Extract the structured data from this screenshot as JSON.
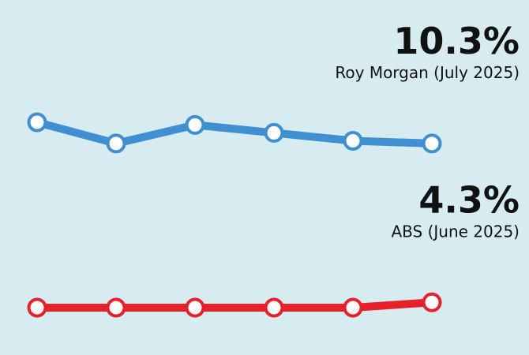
{
  "chart_data": {
    "type": "line",
    "series": [
      {
        "name": "Roy Morgan (July 2025)",
        "color": "#3f8fd2",
        "values": [
          11.1,
          10.3,
          11.0,
          10.7,
          10.4,
          10.3
        ],
        "value_labels": [
          null,
          null,
          null,
          null,
          null,
          "10.3%"
        ]
      },
      {
        "name": "ABS (June 2025)",
        "color": "#e8202a",
        "values": [
          4.1,
          4.1,
          4.1,
          4.1,
          4.1,
          4.3
        ],
        "value_labels": [
          null,
          null,
          null,
          null,
          null,
          "4.3%"
        ]
      }
    ]
  }
}
